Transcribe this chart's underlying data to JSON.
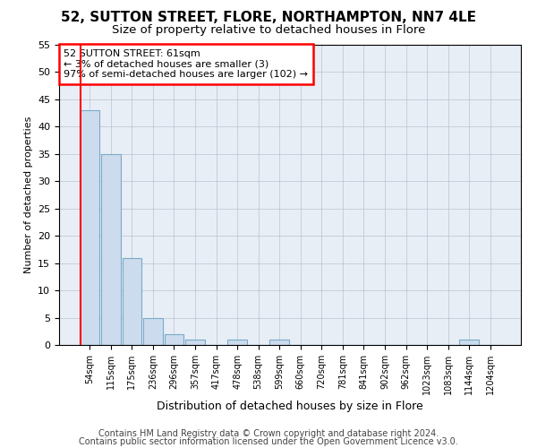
{
  "title": "52, SUTTON STREET, FLORE, NORTHAMPTON, NN7 4LE",
  "subtitle": "Size of property relative to detached houses in Flore",
  "xlabel": "Distribution of detached houses by size in Flore",
  "ylabel": "Number of detached properties",
  "bar_values": [
    43,
    35,
    16,
    5,
    2,
    1,
    0,
    1,
    0,
    1,
    0,
    0,
    0,
    0,
    0,
    0,
    0,
    0,
    1,
    0
  ],
  "bin_labels": [
    "54sqm",
    "115sqm",
    "175sqm",
    "236sqm",
    "296sqm",
    "357sqm",
    "417sqm",
    "478sqm",
    "538sqm",
    "599sqm",
    "660sqm",
    "720sqm",
    "781sqm",
    "841sqm",
    "902sqm",
    "962sqm",
    "1023sqm",
    "1083sqm",
    "1144sqm",
    "1204sqm"
  ],
  "bar_color": "#ccdcee",
  "bar_edge_color": "#7aaac8",
  "annotation_text": "52 SUTTON STREET: 61sqm\n← 3% of detached houses are smaller (3)\n97% of semi-detached houses are larger (102) →",
  "ylim": [
    0,
    55
  ],
  "yticks": [
    0,
    5,
    10,
    15,
    20,
    25,
    30,
    35,
    40,
    45,
    50,
    55
  ],
  "background_color": "#e8eef5",
  "footer_line1": "Contains HM Land Registry data © Crown copyright and database right 2024.",
  "footer_line2": "Contains public sector information licensed under the Open Government Licence v3.0.",
  "grid_color": "#b0b8cc",
  "title_fontsize": 11,
  "subtitle_fontsize": 9.5,
  "annotation_fontsize": 8,
  "footer_fontsize": 7,
  "ylabel_fontsize": 8,
  "xlabel_fontsize": 9,
  "xtick_fontsize": 7,
  "ytick_fontsize": 8,
  "red_line_x": -0.45
}
